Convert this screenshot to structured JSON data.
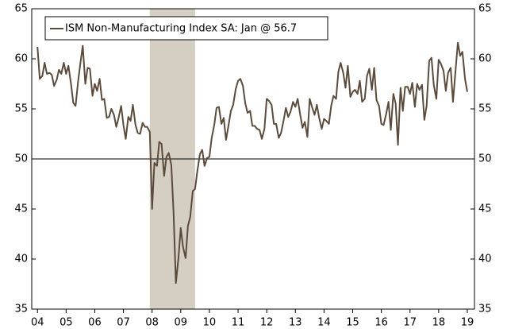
{
  "chart_data": {
    "type": "line",
    "legend": "ISM Non-Manufacturing Index SA: Jan @ 56.7",
    "legend_position": "upper left",
    "color": "#5b4b3c",
    "shade": [
      2007.92,
      2009.5
    ],
    "shade_color": "#d5cfc3",
    "reference_line": 50,
    "xlim": [
      2003.8,
      2019.25
    ],
    "ylim": [
      35,
      65
    ],
    "yticks": [
      35,
      40,
      45,
      50,
      55,
      60,
      65
    ],
    "xticks": [
      {
        "value": 2004,
        "label": "04"
      },
      {
        "value": 2005,
        "label": "05"
      },
      {
        "value": 2006,
        "label": "06"
      },
      {
        "value": 2007,
        "label": "07"
      },
      {
        "value": 2008,
        "label": "08"
      },
      {
        "value": 2009,
        "label": "09"
      },
      {
        "value": 2010,
        "label": "10"
      },
      {
        "value": 2011,
        "label": "11"
      },
      {
        "value": 2012,
        "label": "12"
      },
      {
        "value": 2013,
        "label": "13"
      },
      {
        "value": 2014,
        "label": "14"
      },
      {
        "value": 2015,
        "label": "15"
      },
      {
        "value": 2016,
        "label": "16"
      },
      {
        "value": 2017,
        "label": "17"
      },
      {
        "value": 2018,
        "label": "18"
      },
      {
        "value": 2019,
        "label": "19"
      }
    ],
    "x": [
      2004.0,
      2004.08,
      2004.17,
      2004.25,
      2004.33,
      2004.42,
      2004.5,
      2004.58,
      2004.67,
      2004.75,
      2004.83,
      2004.92,
      2005.0,
      2005.08,
      2005.17,
      2005.25,
      2005.33,
      2005.42,
      2005.5,
      2005.58,
      2005.67,
      2005.75,
      2005.83,
      2005.92,
      2006.0,
      2006.08,
      2006.17,
      2006.25,
      2006.33,
      2006.42,
      2006.5,
      2006.58,
      2006.67,
      2006.75,
      2006.83,
      2006.92,
      2007.0,
      2007.08,
      2007.17,
      2007.25,
      2007.33,
      2007.42,
      2007.5,
      2007.58,
      2007.67,
      2007.75,
      2007.83,
      2007.92,
      2008.0,
      2008.08,
      2008.17,
      2008.25,
      2008.33,
      2008.42,
      2008.5,
      2008.58,
      2008.67,
      2008.75,
      2008.83,
      2008.92,
      2009.0,
      2009.08,
      2009.17,
      2009.25,
      2009.33,
      2009.42,
      2009.5,
      2009.58,
      2009.67,
      2009.75,
      2009.83,
      2009.92,
      2010.0,
      2010.08,
      2010.17,
      2010.25,
      2010.33,
      2010.42,
      2010.5,
      2010.58,
      2010.67,
      2010.75,
      2010.83,
      2010.92,
      2011.0,
      2011.08,
      2011.17,
      2011.25,
      2011.33,
      2011.42,
      2011.5,
      2011.58,
      2011.67,
      2011.75,
      2011.83,
      2011.92,
      2012.0,
      2012.08,
      2012.17,
      2012.25,
      2012.33,
      2012.42,
      2012.5,
      2012.58,
      2012.67,
      2012.75,
      2012.83,
      2012.92,
      2013.0,
      2013.08,
      2013.17,
      2013.25,
      2013.33,
      2013.42,
      2013.5,
      2013.58,
      2013.67,
      2013.75,
      2013.83,
      2013.92,
      2014.0,
      2014.08,
      2014.17,
      2014.25,
      2014.33,
      2014.42,
      2014.5,
      2014.58,
      2014.67,
      2014.75,
      2014.83,
      2014.92,
      2015.0,
      2015.08,
      2015.17,
      2015.25,
      2015.33,
      2015.42,
      2015.5,
      2015.58,
      2015.67,
      2015.75,
      2015.83,
      2015.92,
      2016.0,
      2016.08,
      2016.17,
      2016.25,
      2016.33,
      2016.42,
      2016.5,
      2016.58,
      2016.67,
      2016.75,
      2016.83,
      2016.92,
      2017.0,
      2017.08,
      2017.17,
      2017.25,
      2017.33,
      2017.42,
      2017.5,
      2017.58,
      2017.67,
      2017.75,
      2017.83,
      2017.92,
      2018.0,
      2018.08,
      2018.17,
      2018.25,
      2018.33,
      2018.42,
      2018.5,
      2018.58,
      2018.67,
      2018.75,
      2018.83,
      2018.92,
      2019.0
    ],
    "values": [
      61.2,
      58.0,
      58.3,
      59.6,
      58.5,
      58.6,
      58.4,
      57.3,
      57.9,
      58.9,
      58.5,
      59.6,
      58.5,
      59.3,
      57.5,
      55.6,
      55.3,
      57.8,
      59.6,
      61.3,
      57.5,
      59.1,
      59.0,
      56.3,
      57.5,
      56.8,
      58.0,
      55.9,
      56.0,
      54.1,
      54.2,
      55.0,
      54.4,
      53.2,
      54.1,
      55.3,
      53.4,
      52.0,
      54.2,
      53.8,
      55.4,
      53.4,
      52.6,
      52.5,
      53.6,
      53.2,
      53.2,
      52.7,
      45.0,
      49.6,
      49.3,
      51.7,
      51.5,
      48.3,
      50.2,
      50.6,
      49.4,
      44.6,
      37.6,
      40.1,
      43.1,
      41.2,
      40.1,
      43.3,
      44.2,
      46.8,
      47.0,
      48.8,
      50.5,
      50.9,
      49.3,
      50.1,
      50.2,
      52.1,
      53.4,
      55.1,
      55.2,
      53.5,
      54.1,
      51.9,
      53.4,
      54.8,
      55.4,
      57.0,
      57.8,
      58.0,
      57.3,
      55.6,
      54.6,
      54.8,
      53.3,
      53.3,
      53.0,
      52.9,
      52.0,
      53.0,
      56.0,
      55.8,
      55.4,
      53.5,
      53.5,
      52.1,
      52.6,
      53.7,
      55.1,
      54.2,
      54.7,
      55.7,
      55.2,
      56.0,
      54.4,
      53.1,
      53.7,
      52.2,
      56.0,
      55.2,
      54.4,
      55.4,
      54.1,
      53.0,
      54.0,
      53.8,
      53.5,
      55.3,
      56.3,
      56.0,
      58.7,
      59.6,
      58.6,
      57.1,
      59.3,
      56.2,
      56.7,
      56.9,
      56.5,
      57.8,
      55.7,
      56.0,
      58.3,
      59.0,
      56.9,
      59.1,
      55.9,
      55.3,
      53.5,
      53.4,
      54.5,
      55.7,
      52.9,
      56.5,
      55.5,
      51.4,
      57.1,
      54.8,
      57.2,
      57.2,
      56.5,
      57.6,
      55.2,
      57.5,
      56.9,
      57.4,
      53.9,
      55.3,
      59.8,
      60.1,
      57.4,
      56.0,
      59.9,
      59.5,
      58.8,
      56.8,
      58.6,
      59.1,
      55.7,
      58.5,
      61.6,
      60.3,
      60.7,
      58.0,
      56.7
    ]
  }
}
